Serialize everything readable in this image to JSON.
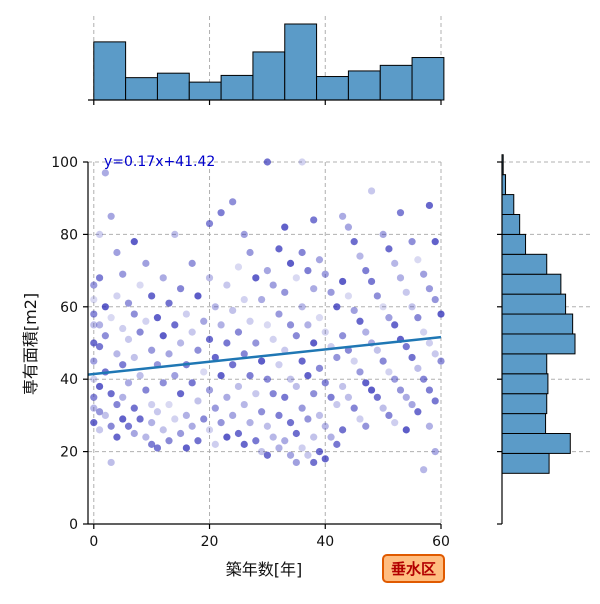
{
  "chart_data": {
    "type": "scatter",
    "title": "",
    "xlabel": "築年数[年]",
    "ylabel": "専有面積[m2]",
    "xlim": [
      -1,
      60
    ],
    "ylim": [
      0,
      100
    ],
    "x_ticks": [
      "0",
      "20",
      "40",
      "60"
    ],
    "y_ticks": [
      "0",
      "20",
      "40",
      "60",
      "80",
      "100"
    ],
    "grid": true,
    "regression": {
      "equation": "y=0.17x+41.42",
      "slope": 0.17,
      "intercept": 41.42
    },
    "badge": "垂水区",
    "top_histogram": {
      "bin_edges": [
        0,
        5.5,
        11,
        16.5,
        22,
        27.5,
        33,
        38.5,
        44,
        49.5,
        55,
        60.5
      ],
      "counts": [
        52,
        20,
        24,
        16,
        22,
        43,
        68,
        21,
        26,
        31,
        38
      ]
    },
    "right_histogram": {
      "bin_edges": [
        14,
        19.5,
        25,
        30.5,
        36,
        41.5,
        47,
        52.5,
        58,
        63.5,
        69,
        74.5,
        80,
        85.5,
        91,
        96.5,
        102
      ],
      "counts": [
        40,
        58,
        37,
        38,
        39,
        38,
        62,
        60,
        54,
        50,
        38,
        20,
        15,
        10,
        3,
        1
      ]
    },
    "points": [
      [
        0,
        62
      ],
      [
        0,
        58
      ],
      [
        0,
        55
      ],
      [
        0,
        50
      ],
      [
        0,
        45
      ],
      [
        0,
        40
      ],
      [
        0,
        35
      ],
      [
        0,
        32
      ],
      [
        0,
        28
      ],
      [
        0,
        66
      ],
      [
        1,
        80
      ],
      [
        1,
        68
      ],
      [
        1,
        55
      ],
      [
        1,
        38
      ],
      [
        1,
        31
      ],
      [
        1,
        26
      ],
      [
        1,
        49
      ],
      [
        2,
        97
      ],
      [
        2,
        60
      ],
      [
        2,
        52
      ],
      [
        2,
        30
      ],
      [
        2,
        42
      ],
      [
        3,
        85
      ],
      [
        3,
        57
      ],
      [
        3,
        27
      ],
      [
        3,
        17
      ],
      [
        3,
        36
      ],
      [
        4,
        75
      ],
      [
        4,
        63
      ],
      [
        4,
        33
      ],
      [
        4,
        47
      ],
      [
        4,
        24
      ],
      [
        5,
        69
      ],
      [
        5,
        54
      ],
      [
        5,
        44
      ],
      [
        5,
        35
      ],
      [
        5,
        29
      ],
      [
        6,
        61
      ],
      [
        6,
        51
      ],
      [
        6,
        27
      ],
      [
        6,
        39
      ],
      [
        7,
        78
      ],
      [
        7,
        58
      ],
      [
        7,
        46
      ],
      [
        7,
        32
      ],
      [
        7,
        25
      ],
      [
        8,
        66
      ],
      [
        8,
        53
      ],
      [
        8,
        41
      ],
      [
        8,
        29
      ],
      [
        9,
        72
      ],
      [
        9,
        56
      ],
      [
        9,
        37
      ],
      [
        9,
        24
      ],
      [
        10,
        63
      ],
      [
        10,
        48
      ],
      [
        10,
        33
      ],
      [
        10,
        22
      ],
      [
        10,
        28
      ],
      [
        11,
        57
      ],
      [
        11,
        44
      ],
      [
        11,
        31
      ],
      [
        11,
        21
      ],
      [
        12,
        68
      ],
      [
        12,
        52
      ],
      [
        12,
        39
      ],
      [
        12,
        26
      ],
      [
        13,
        61
      ],
      [
        13,
        47
      ],
      [
        13,
        33
      ],
      [
        13,
        23
      ],
      [
        14,
        80
      ],
      [
        14,
        55
      ],
      [
        14,
        41
      ],
      [
        14,
        29
      ],
      [
        15,
        65
      ],
      [
        15,
        50
      ],
      [
        15,
        36
      ],
      [
        15,
        25
      ],
      [
        16,
        58
      ],
      [
        16,
        44
      ],
      [
        16,
        30
      ],
      [
        16,
        21
      ],
      [
        17,
        72
      ],
      [
        17,
        53
      ],
      [
        17,
        39
      ],
      [
        17,
        27
      ],
      [
        18,
        63
      ],
      [
        18,
        48
      ],
      [
        18,
        34
      ],
      [
        18,
        23
      ],
      [
        19,
        56
      ],
      [
        19,
        42
      ],
      [
        19,
        29
      ],
      [
        20,
        68
      ],
      [
        20,
        51
      ],
      [
        20,
        37
      ],
      [
        20,
        26
      ],
      [
        20,
        83
      ],
      [
        21,
        60
      ],
      [
        21,
        46
      ],
      [
        21,
        32
      ],
      [
        21,
        22
      ],
      [
        22,
        86
      ],
      [
        22,
        55
      ],
      [
        22,
        41
      ],
      [
        22,
        28
      ],
      [
        23,
        66
      ],
      [
        23,
        50
      ],
      [
        23,
        35
      ],
      [
        23,
        24
      ],
      [
        24,
        89
      ],
      [
        24,
        59
      ],
      [
        24,
        44
      ],
      [
        24,
        30
      ],
      [
        25,
        71
      ],
      [
        25,
        53
      ],
      [
        25,
        38
      ],
      [
        25,
        25
      ],
      [
        26,
        80
      ],
      [
        26,
        62
      ],
      [
        26,
        47
      ],
      [
        26,
        33
      ],
      [
        26,
        22
      ],
      [
        27,
        75
      ],
      [
        27,
        56
      ],
      [
        27,
        41
      ],
      [
        27,
        28
      ],
      [
        28,
        68
      ],
      [
        28,
        50
      ],
      [
        28,
        36
      ],
      [
        28,
        23
      ],
      [
        29,
        62
      ],
      [
        29,
        45
      ],
      [
        29,
        31
      ],
      [
        29,
        20
      ],
      [
        30,
        100
      ],
      [
        30,
        70
      ],
      [
        30,
        55
      ],
      [
        30,
        40
      ],
      [
        30,
        27
      ],
      [
        30,
        19
      ],
      [
        31,
        66
      ],
      [
        31,
        51
      ],
      [
        31,
        36
      ],
      [
        31,
        24
      ],
      [
        32,
        76
      ],
      [
        32,
        58
      ],
      [
        32,
        44
      ],
      [
        32,
        30
      ],
      [
        32,
        21
      ],
      [
        33,
        82
      ],
      [
        33,
        64
      ],
      [
        33,
        48
      ],
      [
        33,
        35
      ],
      [
        33,
        23
      ],
      [
        34,
        72
      ],
      [
        34,
        55
      ],
      [
        34,
        40
      ],
      [
        34,
        28
      ],
      [
        34,
        19
      ],
      [
        35,
        68
      ],
      [
        35,
        52
      ],
      [
        35,
        38
      ],
      [
        35,
        25
      ],
      [
        35,
        17
      ],
      [
        36,
        100
      ],
      [
        36,
        75
      ],
      [
        36,
        60
      ],
      [
        36,
        45
      ],
      [
        36,
        32
      ],
      [
        36,
        21
      ],
      [
        37,
        70
      ],
      [
        37,
        55
      ],
      [
        37,
        41
      ],
      [
        37,
        29
      ],
      [
        37,
        19
      ],
      [
        38,
        84
      ],
      [
        38,
        65
      ],
      [
        38,
        50
      ],
      [
        38,
        36
      ],
      [
        38,
        24
      ],
      [
        38,
        17
      ],
      [
        39,
        73
      ],
      [
        39,
        57
      ],
      [
        39,
        43
      ],
      [
        39,
        30
      ],
      [
        39,
        20
      ],
      [
        40,
        69
      ],
      [
        40,
        53
      ],
      [
        40,
        39
      ],
      [
        40,
        27
      ],
      [
        40,
        18
      ],
      [
        41,
        64
      ],
      [
        41,
        49
      ],
      [
        41,
        35
      ],
      [
        41,
        24
      ],
      [
        42,
        60
      ],
      [
        42,
        46
      ],
      [
        42,
        33
      ],
      [
        42,
        22
      ],
      [
        43,
        85
      ],
      [
        43,
        67
      ],
      [
        43,
        52
      ],
      [
        43,
        38
      ],
      [
        43,
        26
      ],
      [
        44,
        82
      ],
      [
        44,
        63
      ],
      [
        44,
        48
      ],
      [
        44,
        35
      ],
      [
        45,
        78
      ],
      [
        45,
        59
      ],
      [
        45,
        45
      ],
      [
        45,
        32
      ],
      [
        46,
        74
      ],
      [
        46,
        56
      ],
      [
        46,
        42
      ],
      [
        46,
        29
      ],
      [
        47,
        70
      ],
      [
        47,
        53
      ],
      [
        47,
        39
      ],
      [
        47,
        27
      ],
      [
        48,
        92
      ],
      [
        48,
        67
      ],
      [
        48,
        50
      ],
      [
        48,
        37
      ],
      [
        49,
        63
      ],
      [
        49,
        48
      ],
      [
        49,
        35
      ],
      [
        50,
        80
      ],
      [
        50,
        60
      ],
      [
        50,
        45
      ],
      [
        50,
        32
      ],
      [
        51,
        76
      ],
      [
        51,
        57
      ],
      [
        51,
        42
      ],
      [
        51,
        30
      ],
      [
        52,
        72
      ],
      [
        52,
        55
      ],
      [
        52,
        40
      ],
      [
        52,
        28
      ],
      [
        53,
        86
      ],
      [
        53,
        68
      ],
      [
        53,
        51
      ],
      [
        53,
        37
      ],
      [
        54,
        64
      ],
      [
        54,
        49
      ],
      [
        54,
        35
      ],
      [
        54,
        26
      ],
      [
        55,
        78
      ],
      [
        55,
        60
      ],
      [
        55,
        46
      ],
      [
        55,
        33
      ],
      [
        56,
        73
      ],
      [
        56,
        57
      ],
      [
        56,
        43
      ],
      [
        56,
        31
      ],
      [
        57,
        69
      ],
      [
        57,
        53
      ],
      [
        57,
        40
      ],
      [
        57,
        15
      ],
      [
        58,
        88
      ],
      [
        58,
        65
      ],
      [
        58,
        50
      ],
      [
        58,
        37
      ],
      [
        58,
        27
      ],
      [
        59,
        78
      ],
      [
        59,
        62
      ],
      [
        59,
        47
      ],
      [
        59,
        34
      ],
      [
        59,
        20
      ],
      [
        60,
        58
      ],
      [
        60,
        45
      ]
    ]
  }
}
